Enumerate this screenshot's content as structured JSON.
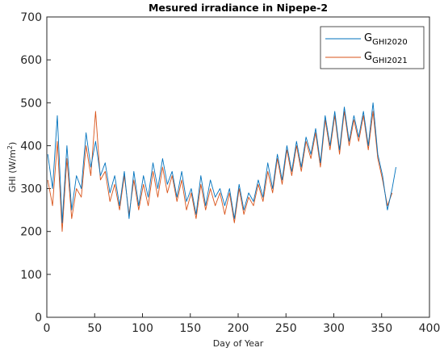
{
  "chart_data": {
    "type": "line",
    "title": "Mesured irradiance in Nipepe-2",
    "xlabel": "Day of Year",
    "ylabel": "GHI (W/m",
    "ylabel_sup": "2",
    "ylabel_end": ")",
    "xlim": [
      0,
      400
    ],
    "ylim": [
      0,
      700
    ],
    "x_ticks": [
      "0",
      "50",
      "100",
      "150",
      "200",
      "250",
      "300",
      "350",
      "400"
    ],
    "y_ticks": [
      "0",
      "100",
      "200",
      "300",
      "400",
      "500",
      "600",
      "700"
    ],
    "grid": false,
    "legend": {
      "placement": "top-right",
      "entries": [
        {
          "main": "G",
          "sub": "GHI2020"
        },
        {
          "main": "G",
          "sub": "GHI2021"
        }
      ]
    },
    "colors": {
      "series_2020": "#0072bd",
      "series_2021": "#d95319"
    },
    "series": [
      {
        "x": [
          1,
          6,
          11,
          16,
          21,
          26,
          31,
          36,
          41,
          46,
          51,
          56,
          61,
          66,
          71,
          76,
          81,
          86,
          91,
          96,
          101,
          106,
          111,
          116,
          121,
          126,
          131,
          136,
          141,
          146,
          151,
          156,
          161,
          166,
          171,
          176,
          181,
          186,
          191,
          196,
          201,
          206,
          211,
          216,
          221,
          226,
          231,
          236,
          241,
          246,
          251,
          256,
          261,
          266,
          271,
          276,
          281,
          286,
          291,
          296,
          301,
          306,
          311,
          316,
          321,
          326,
          331,
          336,
          341,
          346,
          351,
          356,
          361,
          365
        ],
        "values": [
          380,
          300,
          470,
          220,
          400,
          250,
          330,
          300,
          430,
          350,
          410,
          330,
          360,
          290,
          330,
          260,
          340,
          230,
          340,
          260,
          330,
          280,
          360,
          300,
          370,
          310,
          340,
          280,
          340,
          270,
          300,
          240,
          330,
          260,
          320,
          280,
          300,
          260,
          300,
          230,
          310,
          250,
          290,
          270,
          320,
          280,
          360,
          300,
          380,
          320,
          400,
          340,
          410,
          350,
          420,
          380,
          440,
          360,
          470,
          400,
          480,
          390,
          490,
          410,
          470,
          420,
          480,
          400,
          500,
          380,
          330,
          250,
          300,
          350
        ]
      },
      {
        "x": [
          1,
          6,
          11,
          16,
          21,
          26,
          31,
          36,
          41,
          46,
          51,
          56,
          61,
          66,
          71,
          76,
          81,
          86,
          91,
          96,
          101,
          106,
          111,
          116,
          121,
          126,
          131,
          136,
          141,
          146,
          151,
          156,
          161,
          166,
          171,
          176,
          181,
          186,
          191,
          196,
          201,
          206,
          211,
          216,
          221,
          226,
          231,
          236,
          241,
          246,
          251,
          256,
          261,
          266,
          271,
          276,
          281,
          286,
          291,
          296,
          301,
          306,
          311,
          316,
          321,
          326,
          331,
          336,
          341,
          346,
          351,
          356,
          361
        ],
        "values": [
          320,
          260,
          410,
          200,
          370,
          230,
          300,
          280,
          400,
          330,
          480,
          320,
          340,
          270,
          310,
          250,
          330,
          240,
          320,
          250,
          310,
          260,
          340,
          280,
          350,
          290,
          330,
          270,
          320,
          250,
          290,
          230,
          310,
          250,
          300,
          260,
          290,
          240,
          290,
          220,
          300,
          240,
          280,
          260,
          310,
          270,
          340,
          290,
          370,
          310,
          390,
          330,
          400,
          340,
          410,
          370,
          430,
          350,
          460,
          390,
          470,
          380,
          480,
          400,
          460,
          410,
          470,
          390,
          480,
          370,
          320,
          260,
          290
        ]
      }
    ]
  }
}
